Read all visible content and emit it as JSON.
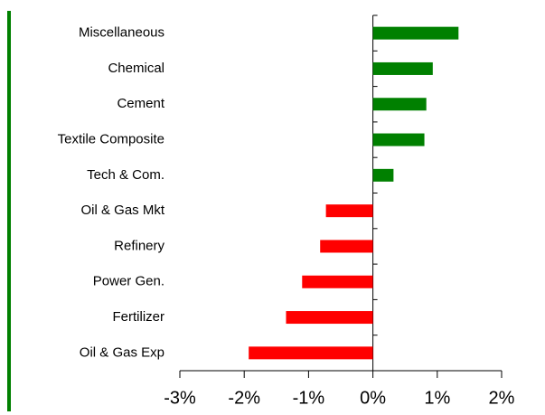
{
  "chart_data": {
    "type": "barh",
    "categories": [
      "Miscellaneous",
      "Chemical",
      "Cement",
      "Textile Composite",
      "Tech & Com.",
      "Oil & Gas Mkt",
      "Refinery",
      "Power Gen.",
      "Fertilizer",
      "Oil & Gas Exp"
    ],
    "values": [
      1.33,
      0.93,
      0.83,
      0.8,
      0.32,
      -0.73,
      -0.82,
      -1.1,
      -1.35,
      -1.93
    ],
    "colors": [
      "#008000",
      "#008000",
      "#008000",
      "#008000",
      "#008000",
      "#ff0000",
      "#ff0000",
      "#ff0000",
      "#ff0000",
      "#ff0000"
    ],
    "xlim": [
      -3,
      2
    ],
    "xticks": [
      {
        "value": -3,
        "label": "-3%"
      },
      {
        "value": -2,
        "label": "-2%"
      },
      {
        "value": -1,
        "label": "-1%"
      },
      {
        "value": 0,
        "label": "0%"
      },
      {
        "value": 1,
        "label": "1%"
      },
      {
        "value": 2,
        "label": "2%"
      }
    ]
  }
}
